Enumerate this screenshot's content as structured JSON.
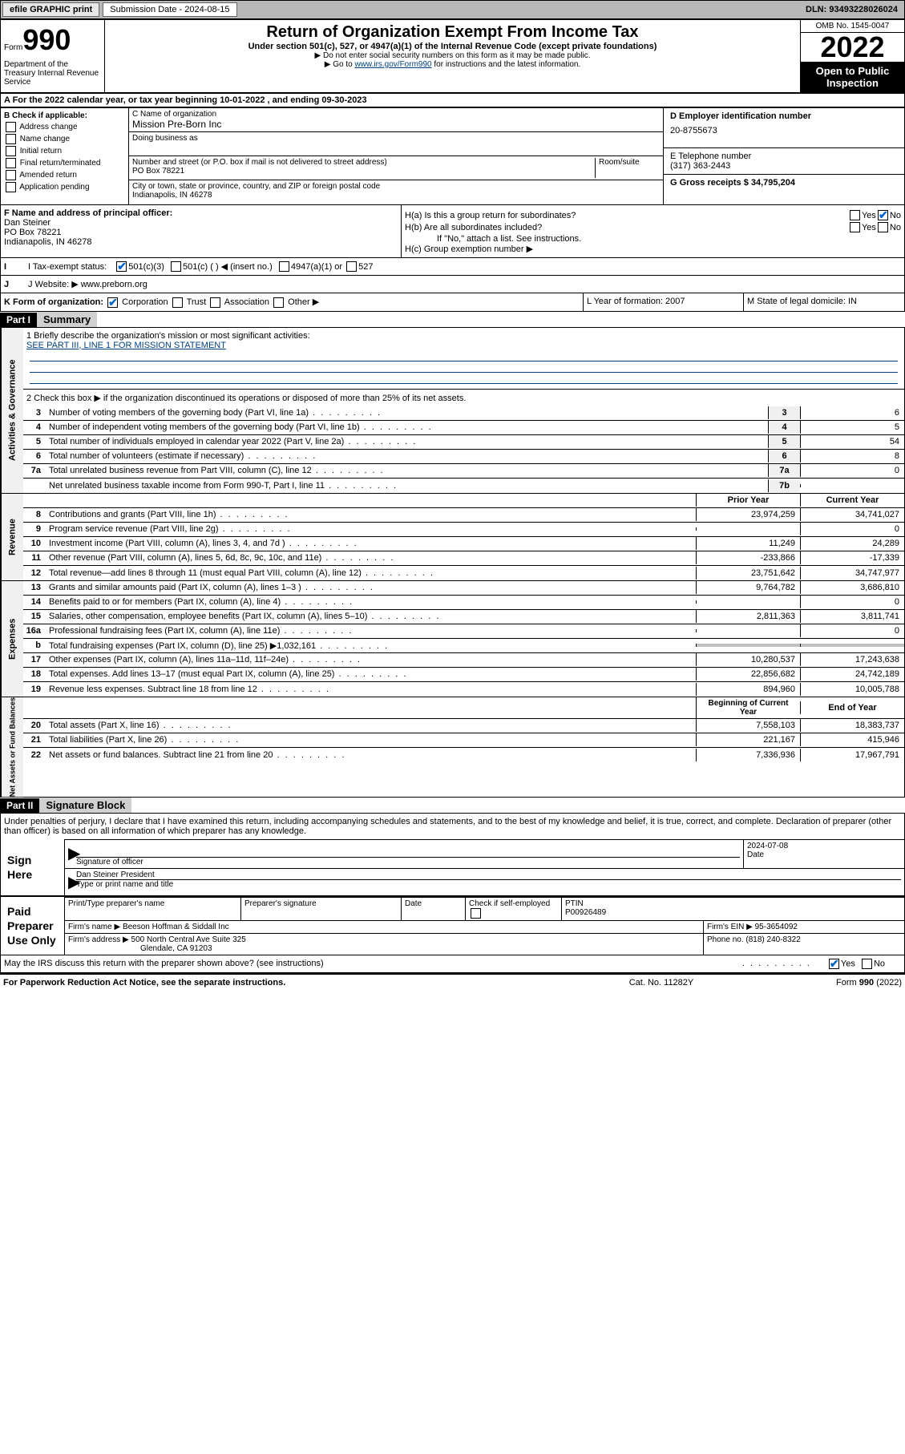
{
  "topbar": {
    "efile": "efile GRAPHIC print",
    "sub_label": "Submission Date - 2024-08-15",
    "dln_label": "DLN: 93493228026024"
  },
  "header": {
    "form_prefix": "Form",
    "form_number": "990",
    "title": "Return of Organization Exempt From Income Tax",
    "subtitle": "Under section 501(c), 527, or 4947(a)(1) of the Internal Revenue Code (except private foundations)",
    "note1": "▶ Do not enter social security numbers on this form as it may be made public.",
    "note2_pre": "▶ Go to ",
    "note2_link": "www.irs.gov/Form990",
    "note2_post": " for instructions and the latest information.",
    "omb": "OMB No. 1545-0047",
    "year": "2022",
    "open_public": "Open to Public Inspection",
    "dept": "Department of the Treasury Internal Revenue Service"
  },
  "section_a": "A   For the 2022 calendar year, or tax year beginning 10-01-2022   , and ending 09-30-2023",
  "box_b": {
    "label": "B Check if applicable:",
    "opts": [
      "Address change",
      "Name change",
      "Initial return",
      "Final return/terminated",
      "Amended return",
      "Application pending"
    ]
  },
  "box_c": {
    "label": "C Name of organization",
    "value": "Mission Pre-Born Inc",
    "dba_label": "Doing business as",
    "street_label": "Number and street (or P.O. box if mail is not delivered to street address)",
    "room_label": "Room/suite",
    "street": "PO Box 78221",
    "city_label": "City or town, state or province, country, and ZIP or foreign postal code",
    "city": "Indianapolis, IN  46278"
  },
  "box_d": {
    "label": "D Employer identification number",
    "value": "20-8755673"
  },
  "box_e": {
    "label": "E Telephone number",
    "value": "(317) 363-2443"
  },
  "box_g": {
    "label": "G Gross receipts $ 34,795,204"
  },
  "box_f": {
    "label": "F  Name and address of principal officer:",
    "name": "Dan Steiner",
    "addr1": "PO Box 78221",
    "addr2": "Indianapolis, IN  46278"
  },
  "box_h": {
    "a": "H(a)  Is this a group return for subordinates?",
    "b": "H(b)  Are all subordinates included?",
    "b_note": "If \"No,\" attach a list. See instructions.",
    "c": "H(c)  Group exemption number ▶"
  },
  "row_i": {
    "label": "I    Tax-exempt status:",
    "o1": "501(c)(3)",
    "o2": "501(c) (  ) ◀ (insert no.)",
    "o3": "4947(a)(1) or",
    "o4": "527"
  },
  "row_j": {
    "label": "J   Website: ▶",
    "value": "www.preborn.org"
  },
  "row_k": {
    "label": "K Form of organization:",
    "o1": "Corporation",
    "o2": "Trust",
    "o3": "Association",
    "o4": "Other ▶"
  },
  "row_l": {
    "label": "L Year of formation: 2007"
  },
  "row_m": {
    "label": "M State of legal domicile: IN"
  },
  "part1": {
    "header": "Part I",
    "title": "Summary"
  },
  "summary": {
    "line1": "1   Briefly describe the organization's mission or most significant activities:",
    "mission": "SEE PART III, LINE 1 FOR MISSION STATEMENT",
    "line2": "2   Check this box ▶        if the organization discontinued its operations or disposed of more than 25% of its net assets.",
    "lines_top": [
      {
        "n": "3",
        "label": "Number of voting members of the governing body (Part VI, line 1a)",
        "col": "3",
        "val": "6"
      },
      {
        "n": "4",
        "label": "Number of independent voting members of the governing body (Part VI, line 1b)",
        "col": "4",
        "val": "5"
      },
      {
        "n": "5",
        "label": "Total number of individuals employed in calendar year 2022 (Part V, line 2a)",
        "col": "5",
        "val": "54"
      },
      {
        "n": "6",
        "label": "Total number of volunteers (estimate if necessary)",
        "col": "6",
        "val": "8"
      },
      {
        "n": "7a",
        "label": "Total unrelated business revenue from Part VIII, column (C), line 12",
        "col": "7a",
        "val": "0"
      },
      {
        "n": "",
        "label": "Net unrelated business taxable income from Form 990-T, Part I, line 11",
        "col": "7b",
        "val": ""
      }
    ],
    "hdr_prior": "Prior Year",
    "hdr_curr": "Current Year",
    "revenue": [
      {
        "n": "8",
        "label": "Contributions and grants (Part VIII, line 1h)",
        "prior": "23,974,259",
        "curr": "34,741,027"
      },
      {
        "n": "9",
        "label": "Program service revenue (Part VIII, line 2g)",
        "prior": "",
        "curr": "0"
      },
      {
        "n": "10",
        "label": "Investment income (Part VIII, column (A), lines 3, 4, and 7d )",
        "prior": "11,249",
        "curr": "24,289"
      },
      {
        "n": "11",
        "label": "Other revenue (Part VIII, column (A), lines 5, 6d, 8c, 9c, 10c, and 11e)",
        "prior": "-233,866",
        "curr": "-17,339"
      },
      {
        "n": "12",
        "label": "Total revenue—add lines 8 through 11 (must equal Part VIII, column (A), line 12)",
        "prior": "23,751,642",
        "curr": "34,747,977"
      }
    ],
    "expenses": [
      {
        "n": "13",
        "label": "Grants and similar amounts paid (Part IX, column (A), lines 1–3 )",
        "prior": "9,764,782",
        "curr": "3,686,810"
      },
      {
        "n": "14",
        "label": "Benefits paid to or for members (Part IX, column (A), line 4)",
        "prior": "",
        "curr": "0"
      },
      {
        "n": "15",
        "label": "Salaries, other compensation, employee benefits (Part IX, column (A), lines 5–10)",
        "prior": "2,811,363",
        "curr": "3,811,741"
      },
      {
        "n": "16a",
        "label": "Professional fundraising fees (Part IX, column (A), line 11e)",
        "prior": "",
        "curr": "0"
      },
      {
        "n": "b",
        "label": "Total fundraising expenses (Part IX, column (D), line 25) ▶1,032,161",
        "prior": "shade",
        "curr": "shade"
      },
      {
        "n": "17",
        "label": "Other expenses (Part IX, column (A), lines 11a–11d, 11f–24e)",
        "prior": "10,280,537",
        "curr": "17,243,638"
      },
      {
        "n": "18",
        "label": "Total expenses. Add lines 13–17 (must equal Part IX, column (A), line 25)",
        "prior": "22,856,682",
        "curr": "24,742,189"
      },
      {
        "n": "19",
        "label": "Revenue less expenses. Subtract line 18 from line 12",
        "prior": "894,960",
        "curr": "10,005,788"
      }
    ],
    "hdr_begin": "Beginning of Current Year",
    "hdr_end": "End of Year",
    "netassets": [
      {
        "n": "20",
        "label": "Total assets (Part X, line 16)",
        "prior": "7,558,103",
        "curr": "18,383,737"
      },
      {
        "n": "21",
        "label": "Total liabilities (Part X, line 26)",
        "prior": "221,167",
        "curr": "415,946"
      },
      {
        "n": "22",
        "label": "Net assets or fund balances. Subtract line 21 from line 20",
        "prior": "7,336,936",
        "curr": "17,967,791"
      }
    ],
    "vtabs": {
      "gov": "Activities & Governance",
      "rev": "Revenue",
      "exp": "Expenses",
      "net": "Net Assets or Fund Balances"
    }
  },
  "part2": {
    "header": "Part II",
    "title": "Signature Block"
  },
  "sig": {
    "decl": "Under penalties of perjury, I declare that I have examined this return, including accompanying schedules and statements, and to the best of my knowledge and belief, it is true, correct, and complete. Declaration of preparer (other than officer) is based on all information of which preparer has any knowledge.",
    "sign_here": "Sign Here",
    "sig_officer": "Signature of officer",
    "date": "Date",
    "date_val": "2024-07-08",
    "officer_name": "Dan Steiner  President",
    "type_name": "Type or print name and title",
    "paid_prep": "Paid Preparer Use Only",
    "print_name": "Print/Type preparer's name",
    "prep_sig": "Preparer's signature",
    "check_if": "Check          if self-employed",
    "ptin": "PTIN",
    "ptin_val": "P00926489",
    "firm_name_l": "Firm's name      ▶",
    "firm_name": "Beeson Hoffman & Siddall Inc",
    "firm_ein_l": "Firm's EIN ▶",
    "firm_ein": "95-3654092",
    "firm_addr_l": "Firm's address ▶",
    "firm_addr": "500 North Central Ave Suite 325",
    "firm_city": "Glendale, CA  91203",
    "phone_l": "Phone no.",
    "phone": "(818) 240-8322",
    "may_irs": "May the IRS discuss this return with the preparer shown above? (see instructions)"
  },
  "footer": {
    "left": "For Paperwork Reduction Act Notice, see the separate instructions.",
    "mid": "Cat. No. 11282Y",
    "right": "Form 990 (2022)"
  }
}
